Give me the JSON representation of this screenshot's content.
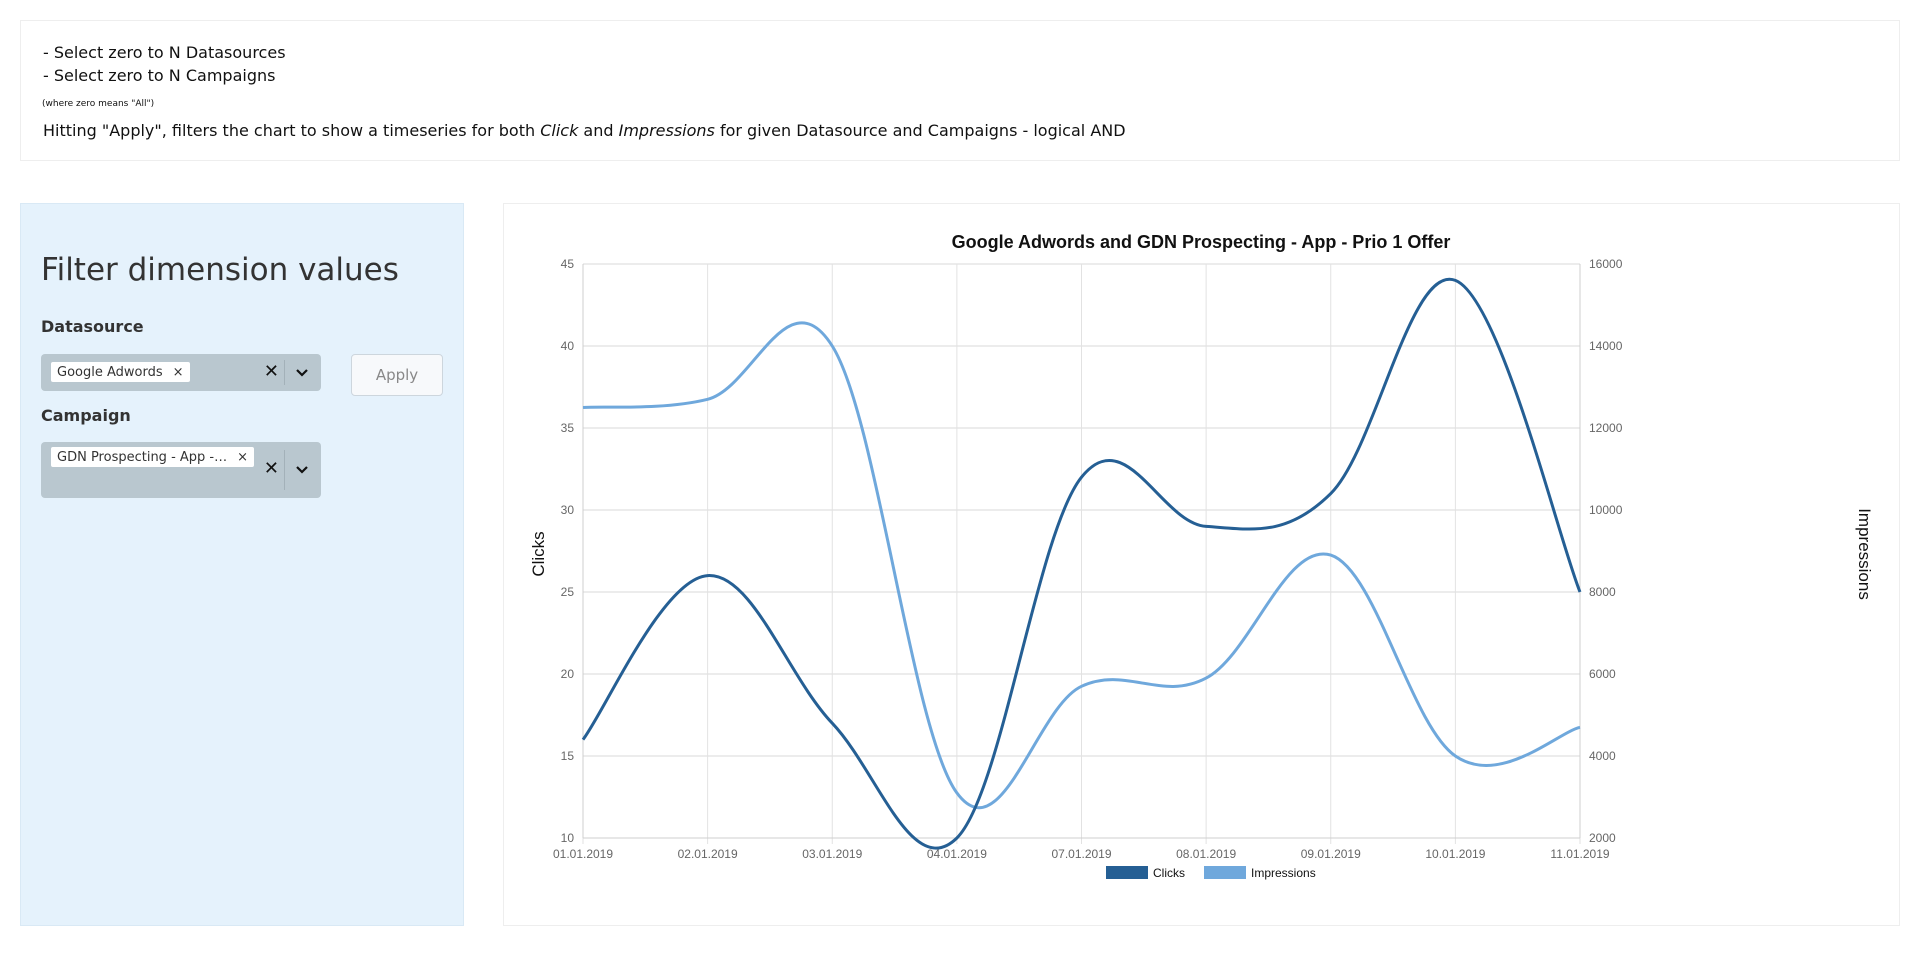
{
  "info": {
    "line1": "- Select zero to N Datasources",
    "line2": "- Select zero to N Campaigns",
    "note": "(where zero means \"All\")",
    "line3_a": "Hitting \"Apply\", filters the chart to show a timeseries for both ",
    "line3_click": "Click",
    "line3_and": " and ",
    "line3_impr": "Impressions",
    "line3_b": " for given Datasource and Campaigns - logical AND"
  },
  "sidebar": {
    "title": "Filter dimension values",
    "datasource_label": "Datasource",
    "datasource_chip": "Google Adwords",
    "campaign_label": "Campaign",
    "campaign_chip": "GDN Prospecting - App -…",
    "chip_remove": "×",
    "clear_glyph": "✕",
    "apply_label": "Apply"
  },
  "chart_data": {
    "type": "line",
    "title": "Google Adwords and GDN Prospecting - App - Prio 1 Offer",
    "ylabel": "Clicks",
    "y2label": "Impressions",
    "categories": [
      "01.01.2019",
      "02.01.2019",
      "03.01.2019",
      "04.01.2019",
      "07.01.2019",
      "08.01.2019",
      "09.01.2019",
      "10.01.2019",
      "11.01.2019"
    ],
    "ylim": [
      10,
      45
    ],
    "yticks": [
      10,
      15,
      20,
      25,
      30,
      35,
      40,
      45
    ],
    "y2lim": [
      2000,
      16000
    ],
    "y2ticks": [
      2000,
      4000,
      6000,
      8000,
      10000,
      12000,
      14000,
      16000
    ],
    "grid": true,
    "legend": "bottom",
    "series": [
      {
        "name": "Clicks",
        "axis": "left",
        "color": "#255f94",
        "values": [
          16,
          26,
          17,
          10,
          32,
          29,
          31,
          44,
          25
        ]
      },
      {
        "name": "Impressions",
        "axis": "right",
        "color": "#6fa8dc",
        "values": [
          12500,
          12700,
          14000,
          3100,
          5700,
          5900,
          8900,
          4000,
          4700
        ]
      }
    ]
  }
}
